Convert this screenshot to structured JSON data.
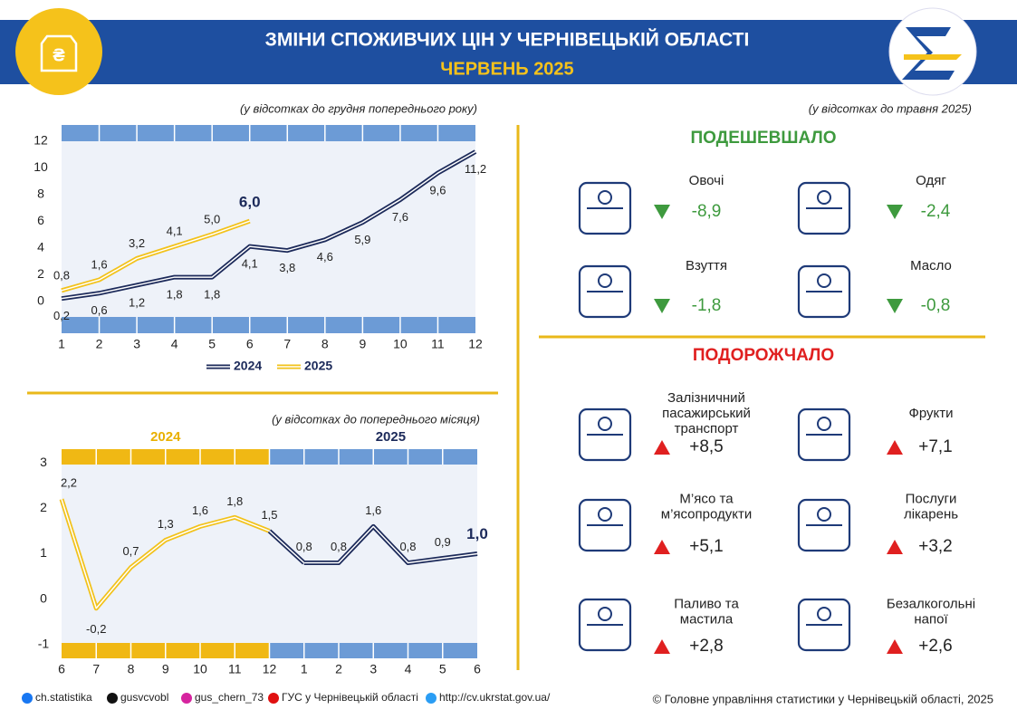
{
  "header": {
    "title": "ЗМІНИ СПОЖИВЧИХ ЦІН У ЧЕРНІВЕЦЬКІЙ ОБЛАСТІ",
    "subtitle": "ЧЕРВЕНЬ 2025"
  },
  "chart_data": [
    {
      "type": "line",
      "note": "(у відсотках до грудня попереднього року)",
      "x": [
        1,
        2,
        3,
        4,
        5,
        6,
        7,
        8,
        9,
        10,
        11,
        12
      ],
      "xlim": [
        1,
        12
      ],
      "ylim": [
        -2.4,
        13.2
      ],
      "yticks": [
        0,
        2,
        4,
        6,
        8,
        10,
        12
      ],
      "series": [
        {
          "name": "2024",
          "color": "#1c2a5a",
          "values": [
            0.2,
            0.6,
            1.2,
            1.8,
            1.8,
            4.1,
            3.8,
            4.6,
            5.9,
            7.6,
            9.6,
            11.2
          ],
          "value_labels": [
            "0,2",
            "0,6",
            "1,2",
            "1,8",
            "1,8",
            "4,1",
            "3,8",
            "4,6",
            "5,9",
            "7,6",
            "9,6",
            "11,2"
          ]
        },
        {
          "name": "2025",
          "color": "#f2c21b",
          "values": [
            0.8,
            1.6,
            3.2,
            4.1,
            5.0,
            6.0,
            null,
            null,
            null,
            null,
            null,
            null
          ],
          "value_labels": [
            "0,8",
            "1,6",
            "3,2",
            "4,1",
            "5,0",
            "6,0",
            null,
            null,
            null,
            null,
            null,
            null
          ]
        }
      ]
    },
    {
      "type": "line",
      "note": "(у відсотках до попереднього місяця)",
      "categories": [
        "6",
        "7",
        "8",
        "9",
        "10",
        "11",
        "12",
        "1",
        "2",
        "3",
        "4",
        "5",
        "6"
      ],
      "ylim": [
        -1.3,
        3.3
      ],
      "yticks": [
        -1,
        0,
        1,
        2,
        3
      ],
      "series": [
        {
          "name": "2024",
          "color": "#f2c21b",
          "values": [
            2.2,
            -0.2,
            0.7,
            1.3,
            1.6,
            1.8,
            1.5,
            null,
            null,
            null,
            null,
            null,
            null
          ],
          "value_labels": [
            "2,2",
            "-0,2",
            "0,7",
            "1,3",
            "1,6",
            "1,8",
            "1,5",
            null,
            null,
            null,
            null,
            null,
            null
          ]
        },
        {
          "name": "2025",
          "color": "#1c2a5a",
          "values": [
            null,
            null,
            null,
            null,
            null,
            null,
            null,
            0.8,
            0.8,
            1.6,
            0.8,
            0.9,
            1.0
          ],
          "value_labels": [
            null,
            null,
            null,
            null,
            null,
            null,
            null,
            "0,8",
            "0,8",
            "1,6",
            "0,8",
            "0,9",
            "1,0"
          ]
        }
      ]
    }
  ],
  "prices": {
    "note": "(у відсотках до травня 2025)",
    "cheaper": {
      "title": "ПОДЕШЕВШАЛО",
      "items": [
        {
          "name": [
            "Овочі"
          ],
          "value": "-8,9"
        },
        {
          "name": [
            "Одяг"
          ],
          "value": "-2,4"
        },
        {
          "name": [
            "Взуття"
          ],
          "value": "-1,8"
        },
        {
          "name": [
            "Масло"
          ],
          "value": "-0,8"
        }
      ]
    },
    "dearer": {
      "title": "ПОДОРОЖЧАЛО",
      "items": [
        {
          "name": [
            "Залізничний",
            "пасажирський",
            "транспорт"
          ],
          "value": "+8,5"
        },
        {
          "name": [
            "Фрукти"
          ],
          "value": "+7,1"
        },
        {
          "name": [
            "М’ясо та",
            "м’ясопродукти"
          ],
          "value": "+5,1"
        },
        {
          "name": [
            "Послуги",
            "лікарень"
          ],
          "value": "+3,2"
        },
        {
          "name": [
            "Паливо та",
            "мастила"
          ],
          "value": "+2,8"
        },
        {
          "name": [
            "Безалкогольні",
            "напої"
          ],
          "value": "+2,6"
        }
      ]
    }
  },
  "footer": {
    "links": [
      "ch.statistika",
      "gusvcvobl",
      "gus_chern_73",
      "ГУС у Чернівецькій області",
      "http://cv.ukrstat.gov.ua/"
    ],
    "copyright": "© Головне управління статистики у Чернівецькій області, 2025"
  }
}
